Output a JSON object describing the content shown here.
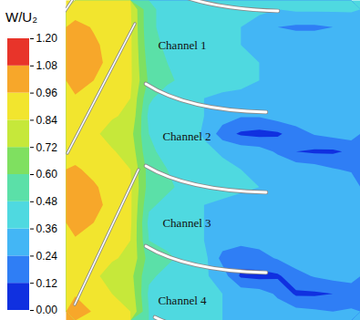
{
  "chart_data": {
    "type": "contour",
    "tick_labels": false,
    "colorbar": {
      "title": "W/U₂",
      "range": [
        0,
        1.2
      ],
      "ticks": [
        {
          "value": 0,
          "label": "0.00"
        },
        {
          "value": 0.12,
          "label": "0.12"
        },
        {
          "value": 0.24,
          "label": "0.24"
        },
        {
          "value": 0.36,
          "label": "0.36"
        },
        {
          "value": 0.48,
          "label": "0.48"
        },
        {
          "value": 0.6,
          "label": "0.60"
        },
        {
          "value": 0.72,
          "label": "0.72"
        },
        {
          "value": 0.84,
          "label": "0.84"
        },
        {
          "value": 0.96,
          "label": "0.96"
        },
        {
          "value": 1.08,
          "label": "1.08"
        },
        {
          "value": 1.2,
          "label": "1.20"
        }
      ],
      "colors": [
        "#1030e0",
        "#2f7ef5",
        "#43b6f5",
        "#4fd9e0",
        "#5be0a8",
        "#7fe060",
        "#c6e83a",
        "#f2e52e",
        "#f7a72a",
        "#e8342a"
      ]
    },
    "cells": [
      [
        0.9,
        0.9,
        0.88,
        0.85,
        0.5,
        0.45,
        0.42,
        0.4,
        0.4,
        0.38,
        0.38,
        0.36,
        0.38,
        0.38,
        0.38,
        0.38
      ],
      [
        1.0,
        0.95,
        0.9,
        0.86,
        0.5,
        0.45,
        0.42,
        0.4,
        0.38,
        0.36,
        0.32,
        0.24,
        0.22,
        0.22,
        0.24,
        0.26
      ],
      [
        1.05,
        0.98,
        0.92,
        0.86,
        0.52,
        0.46,
        0.42,
        0.4,
        0.38,
        0.36,
        0.34,
        0.32,
        0.32,
        0.32,
        0.32,
        0.32
      ],
      [
        1.05,
        1.0,
        0.92,
        0.86,
        0.55,
        0.48,
        0.44,
        0.42,
        0.38,
        0.36,
        0.36,
        0.34,
        0.34,
        0.34,
        0.34,
        0.34
      ],
      [
        1.0,
        0.96,
        0.9,
        0.86,
        0.58,
        0.5,
        0.45,
        0.42,
        0.4,
        0.38,
        0.36,
        0.34,
        0.34,
        0.34,
        0.34,
        0.34
      ],
      [
        0.95,
        0.92,
        0.88,
        0.84,
        0.5,
        0.42,
        0.4,
        0.36,
        0.34,
        0.34,
        0.32,
        0.32,
        0.34,
        0.34,
        0.34,
        0.34
      ],
      [
        0.9,
        0.88,
        0.85,
        0.82,
        0.45,
        0.42,
        0.4,
        0.36,
        0.3,
        0.25,
        0.25,
        0.3,
        0.32,
        0.32,
        0.32,
        0.32
      ],
      [
        0.88,
        0.86,
        0.8,
        0.76,
        0.48,
        0.42,
        0.4,
        0.35,
        0.18,
        0.1,
        0.08,
        0.1,
        0.18,
        0.25,
        0.28,
        0.3
      ],
      [
        0.9,
        0.88,
        0.85,
        0.8,
        0.5,
        0.45,
        0.42,
        0.38,
        0.35,
        0.32,
        0.3,
        0.22,
        0.12,
        0.1,
        0.1,
        0.14
      ],
      [
        0.98,
        0.92,
        0.88,
        0.84,
        0.55,
        0.48,
        0.44,
        0.4,
        0.38,
        0.36,
        0.34,
        0.34,
        0.32,
        0.3,
        0.25,
        0.22
      ],
      [
        1.05,
        0.98,
        0.9,
        0.86,
        0.55,
        0.5,
        0.45,
        0.42,
        0.4,
        0.38,
        0.36,
        0.34,
        0.34,
        0.34,
        0.34,
        0.34
      ],
      [
        1.05,
        1.0,
        0.92,
        0.86,
        0.5,
        0.45,
        0.4,
        0.36,
        0.34,
        0.32,
        0.3,
        0.25,
        0.26,
        0.26,
        0.28,
        0.3
      ],
      [
        1.0,
        0.96,
        0.9,
        0.86,
        0.45,
        0.42,
        0.4,
        0.36,
        0.34,
        0.32,
        0.32,
        0.32,
        0.33,
        0.33,
        0.33,
        0.33
      ],
      [
        0.95,
        0.92,
        0.88,
        0.84,
        0.48,
        0.45,
        0.42,
        0.36,
        0.3,
        0.28,
        0.28,
        0.3,
        0.32,
        0.32,
        0.32,
        0.32
      ],
      [
        0.9,
        0.88,
        0.85,
        0.82,
        0.55,
        0.5,
        0.45,
        0.4,
        0.2,
        0.15,
        0.2,
        0.25,
        0.3,
        0.3,
        0.3,
        0.3
      ],
      [
        0.88,
        0.86,
        0.8,
        0.76,
        0.5,
        0.45,
        0.42,
        0.38,
        0.3,
        0.1,
        0.08,
        0.1,
        0.2,
        0.25,
        0.28,
        0.3
      ],
      [
        0.95,
        0.9,
        0.84,
        0.8,
        0.46,
        0.42,
        0.4,
        0.36,
        0.36,
        0.32,
        0.3,
        0.22,
        0.1,
        0.1,
        0.12,
        0.15
      ],
      [
        1.02,
        0.95,
        0.88,
        0.84,
        0.48,
        0.44,
        0.42,
        0.38,
        0.36,
        0.34,
        0.32,
        0.3,
        0.28,
        0.26,
        0.24,
        0.26
      ]
    ],
    "annotations": [
      "Channel 1",
      "Channel 2",
      "Channel 3",
      "Channel 4"
    ]
  }
}
